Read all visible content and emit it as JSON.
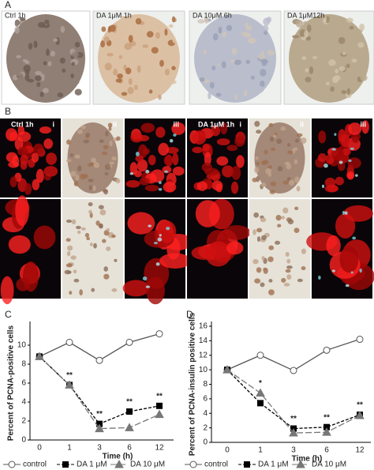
{
  "panel_a": {
    "label": "A",
    "images": [
      "Ctrl 1h",
      "DA 1μM 1h",
      "DA 10μM 6h",
      "DA 1μM12h"
    ]
  },
  "panel_b": {
    "label": "B",
    "groups": [
      {
        "title": "Ctrl 1h",
        "subpanels": [
          "i",
          "ii",
          "iii"
        ]
      },
      {
        "title": "DA 1μM 1h",
        "subpanels": [
          "i",
          "ii",
          "iii"
        ]
      }
    ]
  },
  "chart_data": [
    {
      "type": "line",
      "panel_label": "C",
      "ylabel": "Percent of PCNA-positive cells",
      "xlabel": "Time (h)",
      "categories": [
        "0",
        "1",
        "3",
        "6",
        "12"
      ],
      "ylim": [
        0,
        12
      ],
      "yticks": [
        0,
        2,
        4,
        6,
        8,
        10
      ],
      "series": [
        {
          "name": "control",
          "color": "#555555",
          "marker": "circle",
          "dash": "solid",
          "values": [
            8.8,
            10.3,
            8.4,
            10.3,
            11.2
          ]
        },
        {
          "name": "DA 1 μM",
          "color": "#000000",
          "marker": "square",
          "dash": "dashed",
          "values": [
            8.8,
            5.8,
            1.7,
            3.0,
            3.6
          ]
        },
        {
          "name": "DA 10 μM",
          "color": "#777777",
          "marker": "triangle",
          "dash": "longdash",
          "values": [
            8.8,
            5.8,
            1.2,
            1.3,
            2.7
          ]
        }
      ],
      "annotations": [
        "**",
        "**",
        "**",
        "**"
      ]
    },
    {
      "type": "line",
      "panel_label": "D",
      "ylabel": "Percent of PCNA-insulin positive cells",
      "xlabel": "Time (h)",
      "categories": [
        "0",
        "1",
        "3",
        "6",
        "12"
      ],
      "ylim": [
        0,
        16
      ],
      "yticks": [
        0,
        2,
        4,
        6,
        8,
        10,
        12,
        14,
        16
      ],
      "series": [
        {
          "name": "control",
          "color": "#555555",
          "marker": "circle",
          "dash": "solid",
          "values": [
            10,
            12,
            9.9,
            12.7,
            14.2
          ]
        },
        {
          "name": "DA 1 μM",
          "color": "#000000",
          "marker": "square",
          "dash": "dashed",
          "values": [
            10,
            5.4,
            1.9,
            2.1,
            3.8
          ]
        },
        {
          "name": "DA 10 μM",
          "color": "#777777",
          "marker": "triangle",
          "dash": "longdash",
          "values": [
            10,
            6.8,
            1.3,
            1.4,
            3.7
          ]
        }
      ],
      "annotations": [
        "*",
        "**",
        "**",
        "**"
      ]
    }
  ]
}
